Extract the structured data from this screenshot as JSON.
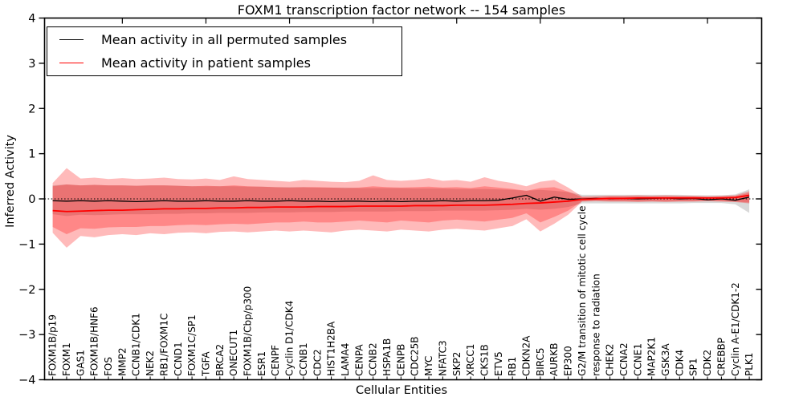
{
  "figure": {
    "title": "FOXM1 transcription factor network -- 154 samples",
    "background": "#ffffff"
  },
  "legend": {
    "position": "upper left",
    "items": [
      {
        "label": "Mean activity in all permuted samples",
        "color": "#000000"
      },
      {
        "label": "Mean activity in patient samples",
        "color": "#ff0000"
      }
    ]
  },
  "chart_data": {
    "type": "line",
    "title": "FOXM1 transcription factor network -- 154 samples",
    "xlabel": "Cellular Entities",
    "ylabel": "Inferred Activity",
    "ylim": [
      -4,
      4
    ],
    "yticks": [
      4,
      3,
      2,
      1,
      0,
      -1,
      -2,
      -3,
      -4
    ],
    "ytick_labels": [
      "4",
      "3",
      "2",
      "1",
      "0",
      "−1",
      "−2",
      "−3",
      "−4"
    ],
    "grid": false,
    "zero_line_style": "dotted",
    "legend_position": "upper left",
    "x_tick_label_rotation_deg": 90,
    "categories": [
      "FOXM1B/p19",
      "FOXM1",
      "GAS1",
      "FOXM1B/HNF6",
      "FOS",
      "MMP2",
      "CCNB1/CDK1",
      "NEK2",
      "RB1/FOXM1C",
      "CCND1",
      "FOXM1C/SP1",
      "TGFA",
      "BRCA2",
      "ONECUT1",
      "FOXM1B/Cbp/p300",
      "ESR1",
      "CENPF",
      "Cyclin D1/CDK4",
      "CCNB1",
      "CDC2",
      "HIST1H2BA",
      "LAMA4",
      "CENPA",
      "CCNB2",
      "HSPA1B",
      "CENPB",
      "CDC25B",
      "MYC",
      "NFATC3",
      "SKP2",
      "XRCC1",
      "CKS1B",
      "ETV5",
      "RB1",
      "CDKN2A",
      "BIRC5",
      "AURKB",
      "EP300",
      "G2/M transition of mitotic cell cycle",
      "response to radiation",
      "CHEK2",
      "CCNA2",
      "CCNE1",
      "MAP2K1",
      "GSK3A",
      "CDK4",
      "SP1",
      "CDK2",
      "CREBBP",
      "Cyclin A-E1/CDK1-2",
      "PLK1"
    ],
    "series": [
      {
        "name": "Mean activity in all permuted samples",
        "color": "#000000",
        "linewidth": 1.3,
        "values": [
          -0.04,
          -0.05,
          -0.04,
          -0.05,
          -0.04,
          -0.05,
          -0.06,
          -0.05,
          -0.04,
          -0.05,
          -0.05,
          -0.04,
          -0.05,
          -0.05,
          -0.04,
          -0.05,
          -0.05,
          -0.04,
          -0.05,
          -0.05,
          -0.06,
          -0.05,
          -0.05,
          -0.06,
          -0.05,
          -0.06,
          -0.05,
          -0.05,
          -0.04,
          -0.05,
          -0.04,
          -0.04,
          -0.03,
          0.02,
          0.08,
          -0.05,
          0.04,
          -0.01,
          0.0,
          0.01,
          0.0,
          0.01,
          0.0,
          0.01,
          0.02,
          0.0,
          0.01,
          -0.02,
          0.0,
          -0.03,
          0.04
        ]
      },
      {
        "name": "Mean activity in patient samples",
        "color": "#ff0000",
        "linewidth": 1.8,
        "values": [
          -0.26,
          -0.28,
          -0.27,
          -0.26,
          -0.25,
          -0.25,
          -0.24,
          -0.23,
          -0.22,
          -0.22,
          -0.21,
          -0.21,
          -0.2,
          -0.2,
          -0.19,
          -0.19,
          -0.18,
          -0.18,
          -0.18,
          -0.17,
          -0.17,
          -0.17,
          -0.16,
          -0.16,
          -0.16,
          -0.16,
          -0.15,
          -0.15,
          -0.15,
          -0.14,
          -0.14,
          -0.14,
          -0.13,
          -0.12,
          -0.1,
          -0.09,
          -0.07,
          -0.05,
          -0.01,
          0.0,
          0.01,
          0.01,
          0.02,
          0.02,
          0.02,
          0.02,
          0.02,
          0.02,
          0.02,
          0.03,
          0.08
        ]
      }
    ],
    "bands": [
      {
        "name": "permuted-samples-range",
        "color": "#000000",
        "opacity": 0.15,
        "upper": [
          0.3,
          0.32,
          0.3,
          0.31,
          0.3,
          0.3,
          0.29,
          0.3,
          0.3,
          0.29,
          0.28,
          0.28,
          0.28,
          0.28,
          0.27,
          0.27,
          0.26,
          0.26,
          0.26,
          0.25,
          0.25,
          0.25,
          0.24,
          0.24,
          0.24,
          0.24,
          0.23,
          0.23,
          0.23,
          0.22,
          0.22,
          0.22,
          0.21,
          0.2,
          0.18,
          0.2,
          0.18,
          0.15,
          0.09,
          0.09,
          0.09,
          0.09,
          0.09,
          0.09,
          0.09,
          0.09,
          0.08,
          0.08,
          0.08,
          0.1,
          0.21
        ],
        "lower": [
          -0.34,
          -0.38,
          -0.35,
          -0.36,
          -0.35,
          -0.34,
          -0.34,
          -0.34,
          -0.33,
          -0.33,
          -0.32,
          -0.32,
          -0.31,
          -0.31,
          -0.31,
          -0.3,
          -0.3,
          -0.3,
          -0.29,
          -0.29,
          -0.29,
          -0.28,
          -0.28,
          -0.28,
          -0.28,
          -0.27,
          -0.27,
          -0.27,
          -0.26,
          -0.26,
          -0.26,
          -0.26,
          -0.25,
          -0.24,
          -0.22,
          -0.24,
          -0.22,
          -0.18,
          -0.1,
          -0.1,
          -0.1,
          -0.1,
          -0.1,
          -0.1,
          -0.1,
          -0.1,
          -0.09,
          -0.09,
          -0.09,
          -0.12,
          -0.31
        ]
      },
      {
        "name": "patient-samples-range-outer",
        "color": "#ff0000",
        "opacity": 0.27,
        "upper": [
          0.35,
          0.68,
          0.45,
          0.47,
          0.44,
          0.46,
          0.44,
          0.45,
          0.47,
          0.44,
          0.43,
          0.45,
          0.42,
          0.5,
          0.44,
          0.42,
          0.4,
          0.38,
          0.42,
          0.4,
          0.38,
          0.37,
          0.4,
          0.52,
          0.42,
          0.4,
          0.42,
          0.46,
          0.4,
          0.42,
          0.38,
          0.48,
          0.4,
          0.35,
          0.28,
          0.38,
          0.42,
          0.25,
          0.05,
          0.06,
          0.07,
          0.07,
          0.08,
          0.07,
          0.08,
          0.07,
          0.07,
          0.06,
          0.07,
          0.08,
          0.17
        ],
        "lower": [
          -0.75,
          -1.08,
          -0.82,
          -0.85,
          -0.8,
          -0.78,
          -0.8,
          -0.76,
          -0.78,
          -0.75,
          -0.74,
          -0.76,
          -0.73,
          -0.72,
          -0.74,
          -0.72,
          -0.7,
          -0.72,
          -0.7,
          -0.72,
          -0.74,
          -0.7,
          -0.68,
          -0.7,
          -0.72,
          -0.68,
          -0.7,
          -0.72,
          -0.68,
          -0.66,
          -0.68,
          -0.7,
          -0.65,
          -0.6,
          -0.45,
          -0.72,
          -0.55,
          -0.35,
          -0.06,
          -0.05,
          -0.06,
          -0.06,
          -0.07,
          -0.06,
          -0.07,
          -0.06,
          -0.06,
          -0.05,
          -0.06,
          -0.07,
          -0.1
        ]
      },
      {
        "name": "patient-samples-range-inner",
        "color": "#ff0000",
        "opacity": 0.27,
        "upper": [
          0.28,
          0.32,
          0.3,
          0.31,
          0.3,
          0.3,
          0.29,
          0.3,
          0.3,
          0.29,
          0.28,
          0.29,
          0.28,
          0.3,
          0.28,
          0.27,
          0.26,
          0.25,
          0.26,
          0.26,
          0.25,
          0.24,
          0.25,
          0.28,
          0.26,
          0.25,
          0.26,
          0.27,
          0.25,
          0.26,
          0.24,
          0.28,
          0.25,
          0.22,
          0.18,
          0.24,
          0.26,
          0.16,
          0.04,
          0.04,
          0.05,
          0.05,
          0.05,
          0.05,
          0.05,
          0.05,
          0.05,
          0.04,
          0.05,
          0.06,
          0.13
        ],
        "lower": [
          -0.62,
          -0.78,
          -0.65,
          -0.66,
          -0.63,
          -0.62,
          -0.62,
          -0.6,
          -0.6,
          -0.58,
          -0.57,
          -0.58,
          -0.56,
          -0.55,
          -0.56,
          -0.54,
          -0.52,
          -0.52,
          -0.5,
          -0.52,
          -0.52,
          -0.5,
          -0.48,
          -0.5,
          -0.52,
          -0.48,
          -0.5,
          -0.52,
          -0.48,
          -0.46,
          -0.48,
          -0.5,
          -0.46,
          -0.42,
          -0.32,
          -0.52,
          -0.4,
          -0.26,
          -0.05,
          -0.04,
          -0.05,
          -0.05,
          -0.05,
          -0.05,
          -0.05,
          -0.05,
          -0.05,
          -0.04,
          -0.05,
          -0.06,
          -0.08
        ]
      }
    ]
  }
}
